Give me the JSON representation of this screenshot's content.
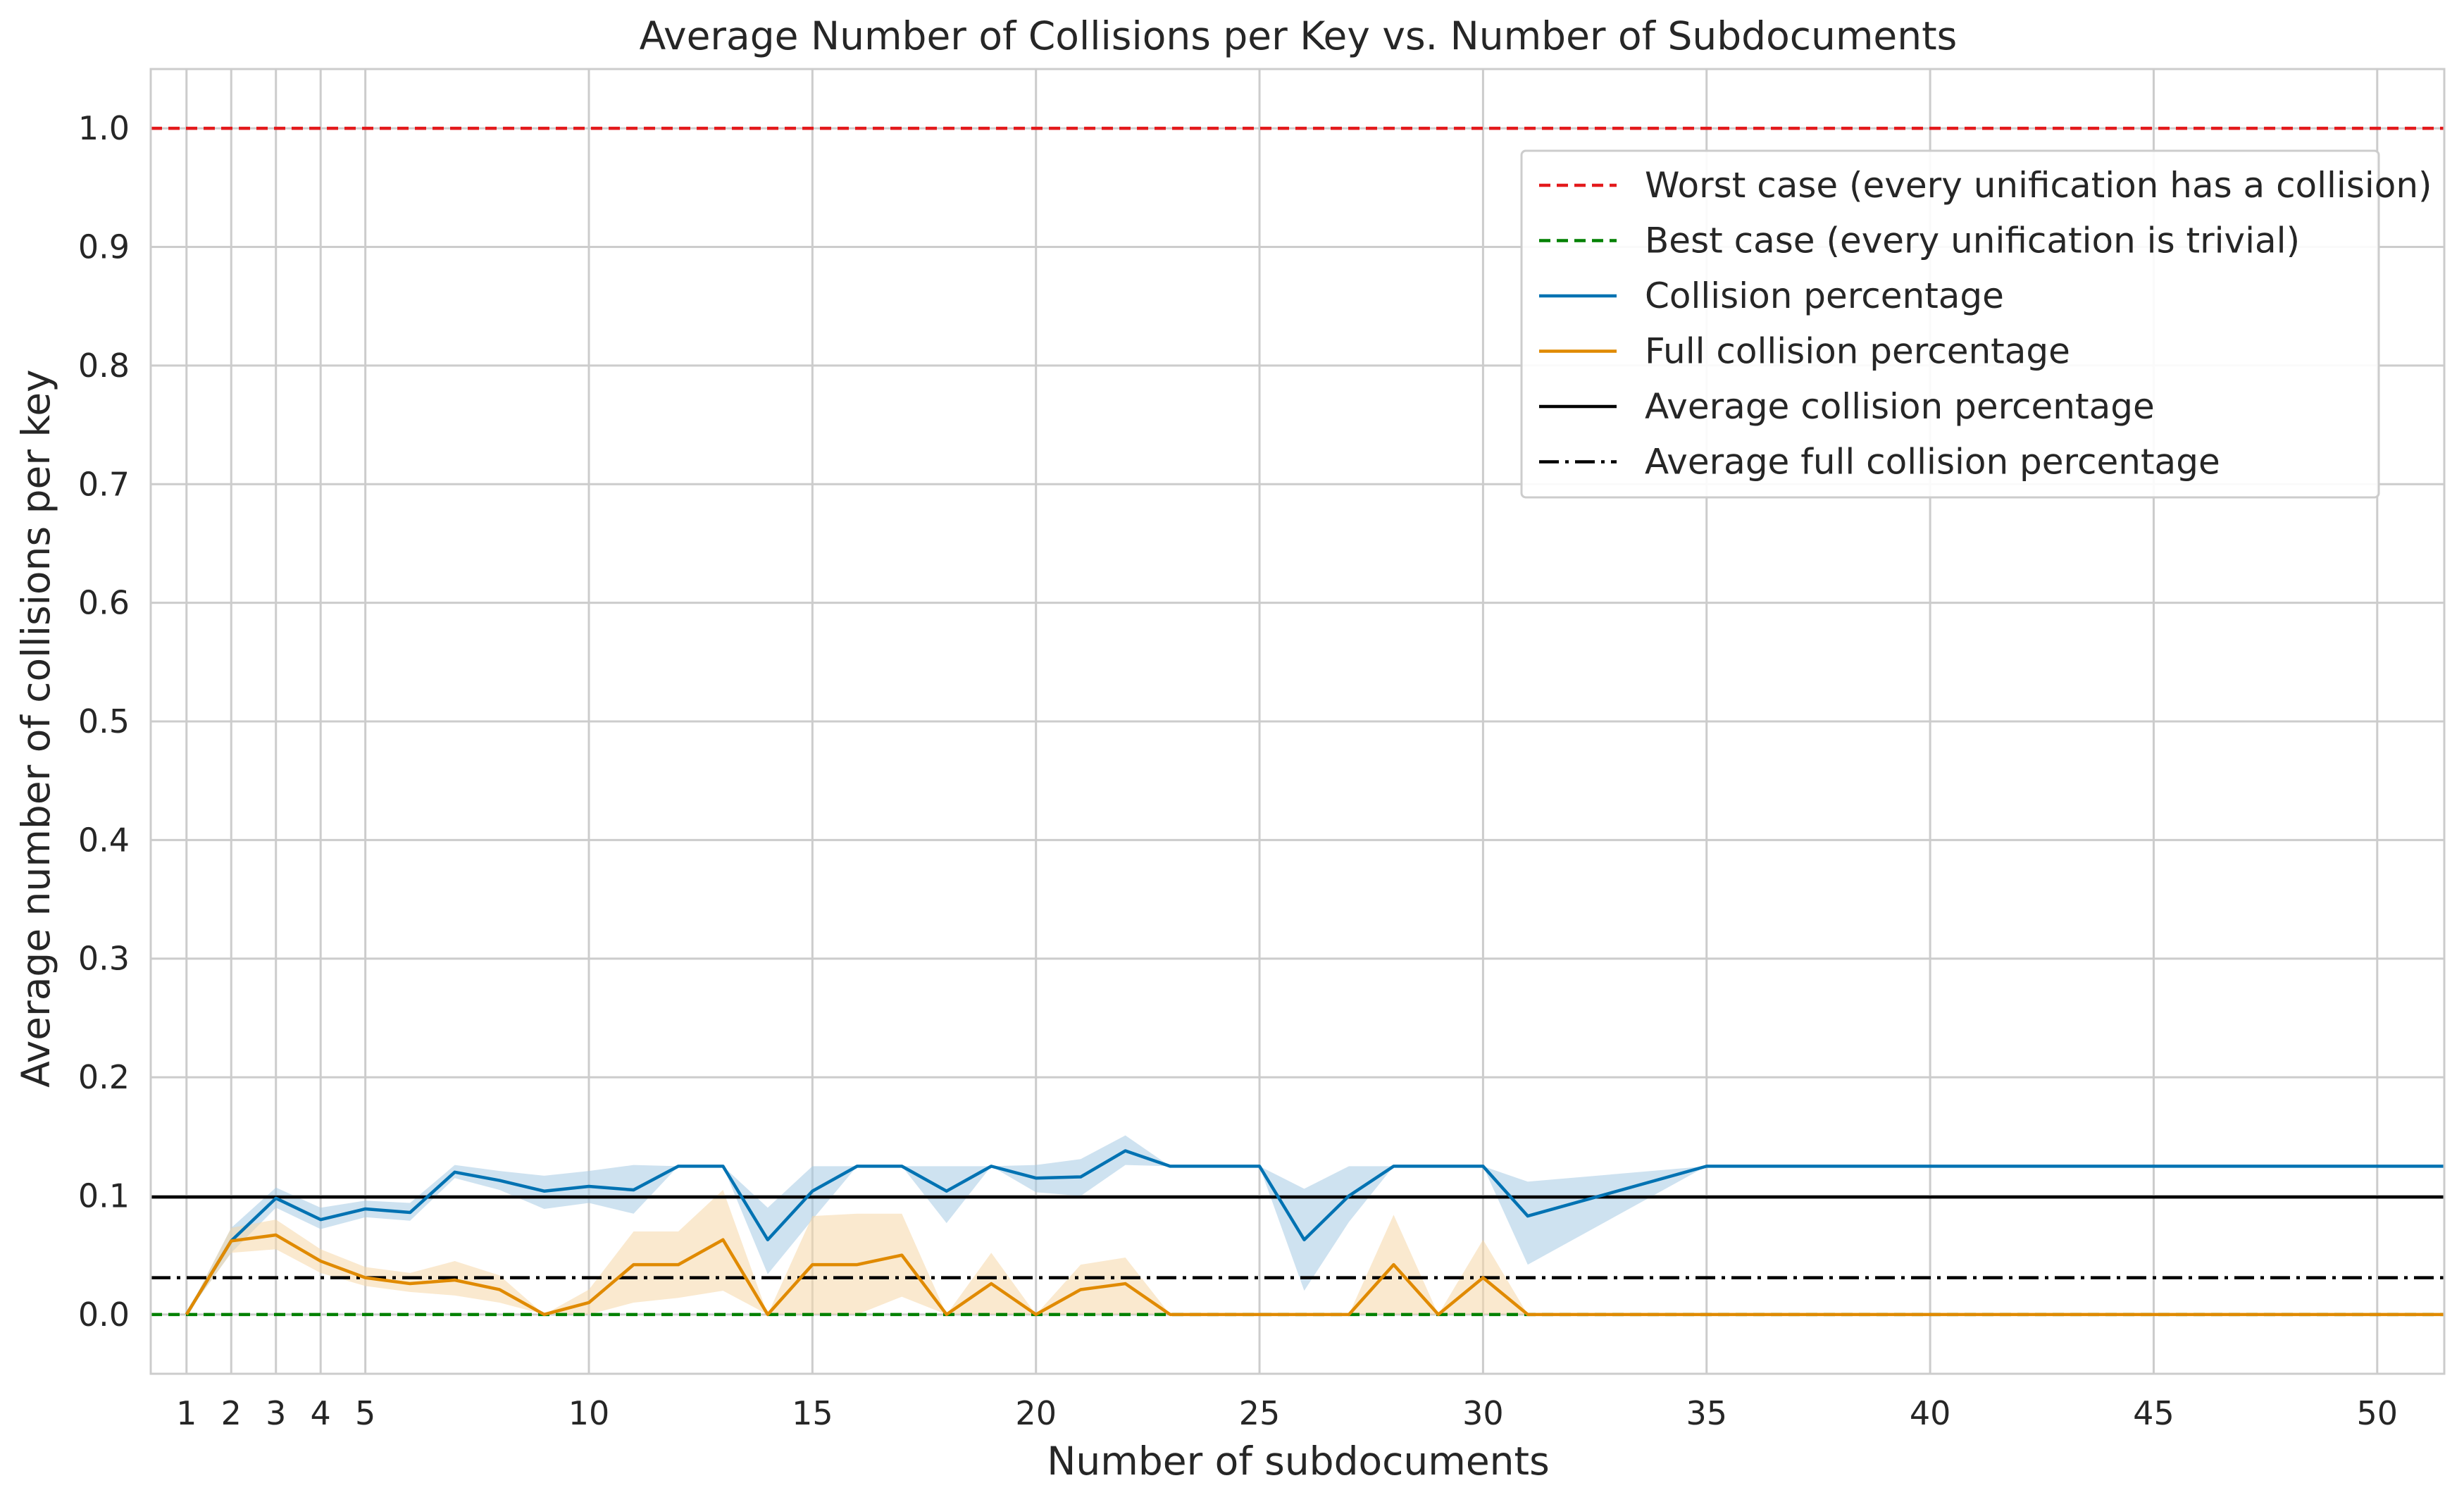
{
  "chart_data": {
    "type": "line",
    "title": "Average Number of Collisions per Key vs. Number of Subdocuments",
    "xlabel": "Number of subdocuments",
    "ylabel": "Average number of collisions per key",
    "xlim": [
      0.2,
      51.5
    ],
    "ylim": [
      -0.05,
      1.05
    ],
    "xticks": [
      1,
      2,
      3,
      4,
      5,
      10,
      15,
      20,
      25,
      30,
      35,
      40,
      45,
      50
    ],
    "yticks": [
      0.0,
      0.1,
      0.2,
      0.3,
      0.4,
      0.5,
      0.6,
      0.7,
      0.8,
      0.9,
      1.0
    ],
    "ytick_labels": [
      "0.0",
      "0.1",
      "0.2",
      "0.3",
      "0.4",
      "0.5",
      "0.6",
      "0.7",
      "0.8",
      "0.9",
      "1.0"
    ],
    "grid": true,
    "legend_position": "top-right",
    "hlines": [
      {
        "name": "Worst case (every unification has a collision)",
        "y": 1.0,
        "color": "#e31a1c",
        "style": "dashed"
      },
      {
        "name": "Best case (every unification is trivial)",
        "y": 0.0,
        "color": "#008000",
        "style": "dashed"
      },
      {
        "name": "Average collision percentage",
        "y": 0.099,
        "color": "#000000",
        "style": "solid"
      },
      {
        "name": "Average full collision percentage",
        "y": 0.031,
        "color": "#000000",
        "style": "dashdot"
      }
    ],
    "series": [
      {
        "name": "Collision percentage",
        "color": "#0072b2",
        "band_color": "#a6cbe3",
        "points": [
          [
            1,
            0.0
          ],
          [
            2,
            0.062
          ],
          [
            3,
            0.098
          ],
          [
            4,
            0.08
          ],
          [
            5,
            0.089
          ],
          [
            6,
            0.086
          ],
          [
            7,
            0.12
          ],
          [
            8,
            0.113
          ],
          [
            9,
            0.104
          ],
          [
            10,
            0.108
          ],
          [
            11,
            0.105
          ],
          [
            12,
            0.125
          ],
          [
            13,
            0.125
          ],
          [
            14,
            0.063
          ],
          [
            15,
            0.104
          ],
          [
            16,
            0.125
          ],
          [
            17,
            0.125
          ],
          [
            18,
            0.104
          ],
          [
            19,
            0.125
          ],
          [
            20,
            0.115
          ],
          [
            21,
            0.116
          ],
          [
            22,
            0.138
          ],
          [
            23,
            0.125
          ],
          [
            24,
            0.125
          ],
          [
            25,
            0.125
          ],
          [
            26,
            0.063
          ],
          [
            27,
            0.1
          ],
          [
            28,
            0.125
          ],
          [
            29,
            0.125
          ],
          [
            30,
            0.125
          ],
          [
            31,
            0.083
          ],
          [
            35,
            0.125
          ],
          [
            51.5,
            0.125
          ]
        ],
        "band": [
          [
            1,
            0.0,
            0.0
          ],
          [
            2,
            0.052,
            0.073
          ],
          [
            3,
            0.09,
            0.107
          ],
          [
            4,
            0.072,
            0.09
          ],
          [
            5,
            0.082,
            0.096
          ],
          [
            6,
            0.079,
            0.094
          ],
          [
            7,
            0.115,
            0.126
          ],
          [
            8,
            0.105,
            0.121
          ],
          [
            9,
            0.089,
            0.117
          ],
          [
            10,
            0.094,
            0.121
          ],
          [
            11,
            0.085,
            0.126
          ],
          [
            12,
            0.125,
            0.125
          ],
          [
            13,
            0.125,
            0.125
          ],
          [
            14,
            0.034,
            0.09
          ],
          [
            15,
            0.08,
            0.125
          ],
          [
            16,
            0.125,
            0.125
          ],
          [
            17,
            0.125,
            0.125
          ],
          [
            18,
            0.077,
            0.125
          ],
          [
            19,
            0.125,
            0.125
          ],
          [
            20,
            0.103,
            0.126
          ],
          [
            21,
            0.1,
            0.131
          ],
          [
            22,
            0.126,
            0.151
          ],
          [
            23,
            0.125,
            0.125
          ],
          [
            24,
            0.125,
            0.125
          ],
          [
            25,
            0.125,
            0.125
          ],
          [
            26,
            0.02,
            0.106
          ],
          [
            27,
            0.078,
            0.125
          ],
          [
            28,
            0.125,
            0.125
          ],
          [
            29,
            0.125,
            0.125
          ],
          [
            30,
            0.125,
            0.125
          ],
          [
            31,
            0.042,
            0.112
          ],
          [
            35,
            0.125,
            0.125
          ],
          [
            51.5,
            0.125,
            0.125
          ]
        ]
      },
      {
        "name": "Full collision percentage",
        "color": "#e08a00",
        "band_color": "#f6d7a8",
        "points": [
          [
            1,
            0.0
          ],
          [
            2,
            0.062
          ],
          [
            3,
            0.067
          ],
          [
            4,
            0.045
          ],
          [
            5,
            0.031
          ],
          [
            6,
            0.026
          ],
          [
            7,
            0.029
          ],
          [
            8,
            0.021
          ],
          [
            9,
            0.0
          ],
          [
            10,
            0.01
          ],
          [
            11,
            0.042
          ],
          [
            12,
            0.042
          ],
          [
            13,
            0.063
          ],
          [
            14,
            0.0
          ],
          [
            15,
            0.042
          ],
          [
            16,
            0.042
          ],
          [
            17,
            0.05
          ],
          [
            18,
            0.0
          ],
          [
            19,
            0.026
          ],
          [
            20,
            0.0
          ],
          [
            21,
            0.021
          ],
          [
            22,
            0.026
          ],
          [
            23,
            0.0
          ],
          [
            24,
            0.0
          ],
          [
            25,
            0.0
          ],
          [
            26,
            0.0
          ],
          [
            27,
            0.0
          ],
          [
            28,
            0.042
          ],
          [
            29,
            0.0
          ],
          [
            30,
            0.031
          ],
          [
            31,
            0.0
          ],
          [
            35,
            0.0
          ],
          [
            51.5,
            0.0
          ]
        ],
        "band": [
          [
            1,
            0.0,
            0.0
          ],
          [
            2,
            0.052,
            0.073
          ],
          [
            3,
            0.055,
            0.08
          ],
          [
            4,
            0.035,
            0.055
          ],
          [
            5,
            0.024,
            0.04
          ],
          [
            6,
            0.019,
            0.035
          ],
          [
            7,
            0.016,
            0.045
          ],
          [
            8,
            0.01,
            0.033
          ],
          [
            9,
            0.0,
            0.0
          ],
          [
            10,
            0.0,
            0.021
          ],
          [
            11,
            0.01,
            0.07
          ],
          [
            12,
            0.014,
            0.07
          ],
          [
            13,
            0.02,
            0.105
          ],
          [
            14,
            0.0,
            0.0
          ],
          [
            15,
            0.0,
            0.083
          ],
          [
            16,
            0.0,
            0.085
          ],
          [
            17,
            0.015,
            0.085
          ],
          [
            18,
            0.0,
            0.0
          ],
          [
            19,
            0.0,
            0.052
          ],
          [
            20,
            0.0,
            0.0
          ],
          [
            21,
            0.0,
            0.042
          ],
          [
            22,
            0.0,
            0.048
          ],
          [
            23,
            0.0,
            0.0
          ],
          [
            24,
            0.0,
            0.0
          ],
          [
            25,
            0.0,
            0.0
          ],
          [
            26,
            0.0,
            0.0
          ],
          [
            27,
            0.0,
            0.0
          ],
          [
            28,
            0.0,
            0.084
          ],
          [
            29,
            0.0,
            0.0
          ],
          [
            30,
            0.0,
            0.063
          ],
          [
            31,
            0.0,
            0.0
          ],
          [
            35,
            0.0,
            0.0
          ],
          [
            51.5,
            0.0,
            0.0
          ]
        ]
      }
    ],
    "legend": [
      {
        "label": "Worst case (every unification has a collision)",
        "color": "#e31a1c",
        "style": "dashed"
      },
      {
        "label": "Best case (every unification is trivial)",
        "color": "#008000",
        "style": "dashed"
      },
      {
        "label": "Collision percentage",
        "color": "#0072b2",
        "style": "solid"
      },
      {
        "label": "Full collision percentage",
        "color": "#e08a00",
        "style": "solid"
      },
      {
        "label": "Average collision percentage",
        "color": "#000000",
        "style": "solid"
      },
      {
        "label": "Average full collision percentage",
        "color": "#000000",
        "style": "dashdot"
      }
    ]
  }
}
